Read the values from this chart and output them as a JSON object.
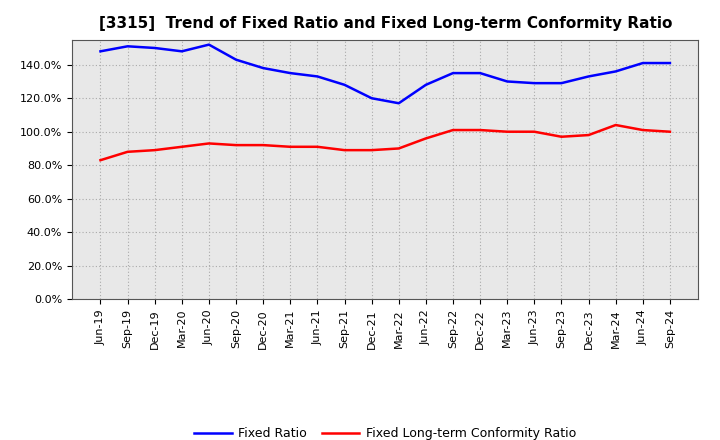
{
  "title": "[3315]  Trend of Fixed Ratio and Fixed Long-term Conformity Ratio",
  "x_labels": [
    "Jun-19",
    "Sep-19",
    "Dec-19",
    "Mar-20",
    "Jun-20",
    "Sep-20",
    "Dec-20",
    "Mar-21",
    "Jun-21",
    "Sep-21",
    "Dec-21",
    "Mar-22",
    "Jun-22",
    "Sep-22",
    "Dec-22",
    "Mar-23",
    "Jun-23",
    "Sep-23",
    "Dec-23",
    "Mar-24",
    "Jun-24",
    "Sep-24"
  ],
  "fixed_ratio": [
    148,
    151,
    150,
    148,
    152,
    143,
    138,
    135,
    133,
    128,
    120,
    117,
    128,
    135,
    135,
    130,
    129,
    129,
    133,
    136,
    141,
    141
  ],
  "fixed_lt_ratio": [
    83,
    88,
    89,
    91,
    93,
    92,
    92,
    91,
    91,
    89,
    89,
    90,
    96,
    101,
    101,
    100,
    100,
    97,
    98,
    104,
    101,
    100
  ],
  "ylim": [
    0,
    155
  ],
  "yticks": [
    0,
    20,
    40,
    60,
    80,
    100,
    120,
    140
  ],
  "ytick_labels": [
    "0.0%",
    "20.0%",
    "40.0%",
    "60.0%",
    "80.0%",
    "100.0%",
    "120.0%",
    "140.0%"
  ],
  "fixed_ratio_color": "#0000FF",
  "fixed_lt_ratio_color": "#FF0000",
  "legend_fixed": "Fixed Ratio",
  "legend_lt": "Fixed Long-term Conformity Ratio",
  "bg_color": "#FFFFFF",
  "plot_bg_color": "#E8E8E8",
  "grid_color": "#AAAAAA",
  "line_width": 1.8,
  "title_fontsize": 11,
  "tick_fontsize": 8,
  "legend_fontsize": 9
}
